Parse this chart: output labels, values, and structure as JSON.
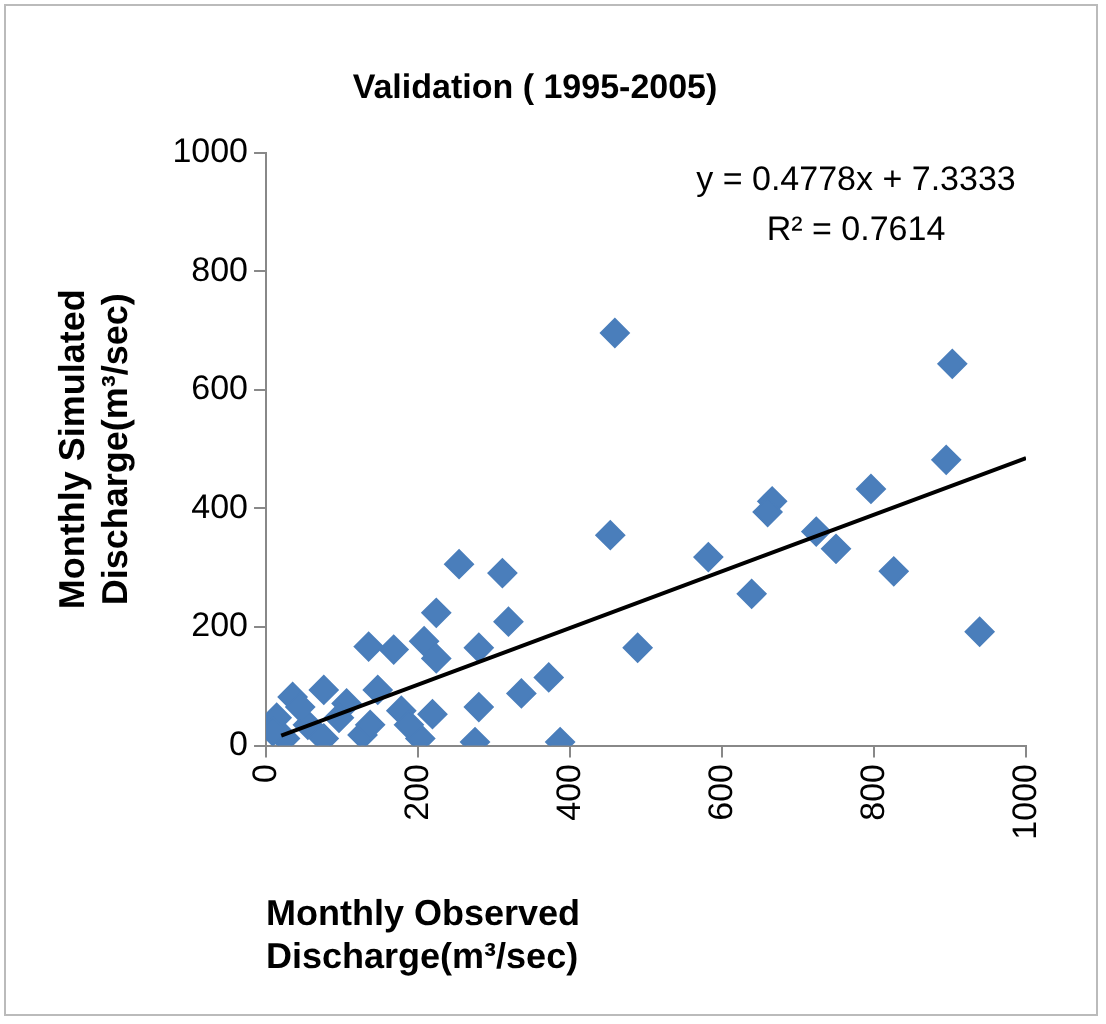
{
  "chart_data": {
    "type": "scatter",
    "title": "Validation ( 1995-2005)",
    "xlabel": "Monthly Observed Discharge(m³/sec)",
    "ylabel": "Monthly Simulated Discharge(m³/sec)",
    "annotations": [
      "y = 0.4778x + 7.3333",
      "R² = 0.7614"
    ],
    "series": [
      {
        "color": "#4a7ebb",
        "x": [
          459,
          903,
          895,
          796,
          666,
          660,
          724,
          750,
          826,
          939,
          582,
          639,
          453,
          489,
          254,
          311,
          224,
          319,
          208,
          135,
          168,
          280,
          224,
          372,
          336,
          280,
          219,
          178,
          203,
          275,
          387,
          147,
          106,
          76,
          35,
          14,
          55,
          25,
          76,
          127,
          96,
          45,
          137,
          188,
          9
        ],
        "values": [
          696,
          644,
          482,
          433,
          412,
          394,
          361,
          332,
          294,
          192,
          318,
          256,
          355,
          165,
          306,
          291,
          224,
          209,
          176,
          167,
          162,
          165,
          147,
          115,
          88,
          65,
          53,
          59,
          12,
          6,
          6,
          94,
          71,
          94,
          82,
          47,
          35,
          12,
          12,
          18,
          47,
          65,
          35,
          35,
          24
        ]
      },
      {
        "type": "line",
        "color": "#000000",
        "marker": "none",
        "x": [
          20,
          1000
        ],
        "values": [
          17,
          485
        ]
      }
    ],
    "xlim": [
      0,
      1000
    ],
    "xticks": [
      0,
      200,
      400,
      600,
      800,
      1000
    ],
    "ylim": [
      0,
      1000
    ],
    "yticks": [
      0,
      200,
      400,
      600,
      800,
      1000
    ],
    "grid": false,
    "legend": false,
    "marker": "diamond"
  }
}
